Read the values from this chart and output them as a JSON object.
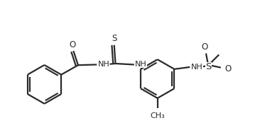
{
  "bg_color": "#ffffff",
  "line_color": "#2a2a2a",
  "line_width": 1.6,
  "figsize": [
    3.66,
    1.84
  ],
  "dpi": 100,
  "xlim": [
    0.0,
    9.5
  ],
  "ylim": [
    0.0,
    5.0
  ]
}
